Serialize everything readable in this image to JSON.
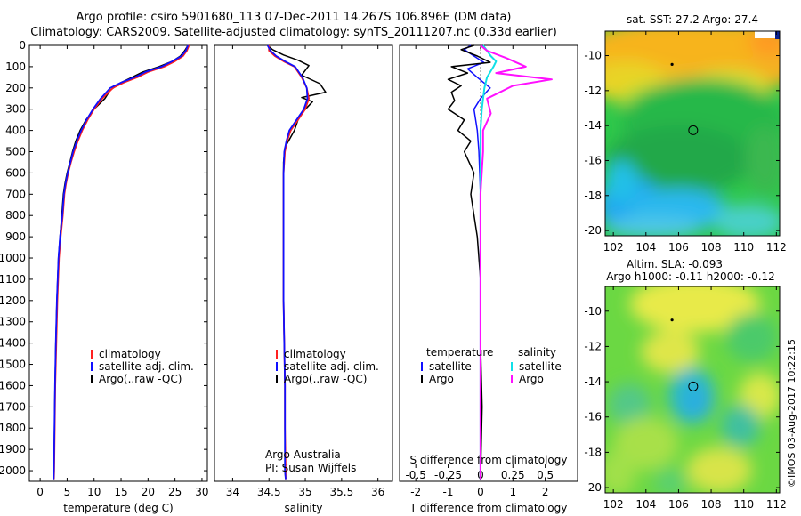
{
  "header": {
    "title_line1": "Argo profile: csiro 5901680_113 07-Dec-2011 14.267S 106.896E (DM data)",
    "title_line2": "Climatology: CARS2009. Satellite-adjusted climatology: synTS_20111207.nc (0.33d earlier)"
  },
  "colors": {
    "climatology": "#ff2020",
    "satellite": "#1010ff",
    "argo": "#000000",
    "salinity_satellite": "#10e0e8",
    "salinity_argo": "#ff10ff"
  },
  "chart_data": [
    {
      "type": "line",
      "xlabel": "temperature (deg C)",
      "ylabel": "",
      "xlim": [
        -2,
        31
      ],
      "ylim": [
        2050,
        0
      ],
      "y_inverted": true,
      "xticks": [
        0,
        5,
        10,
        15,
        20,
        25,
        30
      ],
      "yticks": [
        0,
        100,
        200,
        300,
        400,
        500,
        600,
        700,
        800,
        900,
        1000,
        1100,
        1200,
        1300,
        1400,
        1500,
        1600,
        1700,
        1800,
        1900,
        2000
      ],
      "legend": {
        "placement": "lower-center",
        "entries": [
          "climatology",
          "satellite-adj. clim.",
          "Argo(..raw -QC)"
        ]
      },
      "series": [
        {
          "name": "climatology",
          "color": "climatology",
          "x": [
            27.6,
            27.2,
            26.5,
            25,
            23,
            20,
            18,
            15.5,
            13.5,
            11.5,
            10,
            8.8,
            7.8,
            7,
            6.3,
            5.7,
            5.2,
            4.8,
            4.5,
            4.2,
            3.8,
            3.5,
            3.2,
            3,
            2.8,
            2.7,
            2.6,
            2.55
          ],
          "y": [
            0,
            25,
            50,
            75,
            100,
            125,
            150,
            175,
            200,
            250,
            300,
            350,
            400,
            450,
            500,
            550,
            600,
            650,
            700,
            800,
            900,
            1000,
            1200,
            1400,
            1600,
            1800,
            2000,
            2040
          ]
        },
        {
          "name": "satellite-adj. clim.",
          "color": "satellite",
          "x": [
            27.4,
            27,
            26.2,
            24.5,
            22.5,
            19.5,
            17.5,
            15,
            13,
            11.2,
            9.8,
            8.6,
            7.6,
            6.8,
            6.1,
            5.6,
            5.1,
            4.7,
            4.4,
            4.1,
            3.7,
            3.4,
            3.1,
            2.9,
            2.75,
            2.65,
            2.55,
            2.5
          ],
          "y": [
            0,
            25,
            50,
            75,
            100,
            125,
            150,
            175,
            200,
            250,
            300,
            350,
            400,
            450,
            500,
            550,
            600,
            650,
            700,
            800,
            900,
            1000,
            1200,
            1400,
            1600,
            1800,
            2000,
            2040
          ]
        },
        {
          "name": "Argo(..raw -QC)",
          "color": "argo",
          "x": [
            27.4,
            26.8,
            26,
            24.5,
            22,
            19,
            17,
            15,
            13,
            12,
            10,
            8.5,
            7.4,
            6.6,
            6,
            5.5,
            5,
            4.6,
            4.3,
            4,
            3.7,
            3.4,
            3.1,
            2.9,
            2.75,
            2.65,
            2.55,
            2.5
          ],
          "y": [
            0,
            25,
            50,
            75,
            100,
            125,
            150,
            175,
            210,
            250,
            300,
            350,
            400,
            450,
            500,
            550,
            600,
            650,
            700,
            800,
            900,
            1000,
            1200,
            1400,
            1600,
            1800,
            2000,
            2040
          ]
        }
      ]
    },
    {
      "type": "line",
      "xlabel": "salinity",
      "ylabel": "",
      "xlim": [
        33.75,
        36.2
      ],
      "ylim": [
        2050,
        0
      ],
      "y_inverted": true,
      "xticks": [
        34,
        34.5,
        35,
        35.5,
        36
      ],
      "legend": {
        "placement": "lower-center",
        "entries": [
          "climatology",
          "satellite-adj. clim.",
          "Argo(..raw -QC)"
        ]
      },
      "annotation": {
        "line1": "Argo Australia",
        "line2": "PI: Susan Wijffels"
      },
      "series": [
        {
          "name": "climatology",
          "color": "climatology",
          "x": [
            34.5,
            34.5,
            34.58,
            34.7,
            34.85,
            34.95,
            35.02,
            35.05,
            35.0,
            34.9,
            34.8,
            34.75,
            34.72,
            34.7,
            34.7,
            34.7,
            34.7,
            34.71,
            34.72,
            34.72,
            34.73,
            34.73
          ],
          "y": [
            0,
            25,
            50,
            75,
            100,
            150,
            200,
            250,
            300,
            350,
            400,
            450,
            500,
            600,
            800,
            1000,
            1200,
            1400,
            1600,
            1800,
            2000,
            2040
          ]
        },
        {
          "name": "satellite-adj. clim.",
          "color": "satellite",
          "x": [
            34.48,
            34.52,
            34.6,
            34.72,
            34.86,
            34.96,
            35.02,
            35.03,
            34.98,
            34.88,
            34.78,
            34.74,
            34.71,
            34.7,
            34.7,
            34.7,
            34.7,
            34.71,
            34.72,
            34.72,
            34.72,
            34.73
          ],
          "y": [
            0,
            25,
            50,
            75,
            100,
            150,
            200,
            250,
            300,
            350,
            400,
            450,
            500,
            600,
            800,
            1000,
            1200,
            1400,
            1600,
            1800,
            2000,
            2040
          ]
        },
        {
          "name": "Argo(..raw -QC)",
          "color": "argo",
          "x": [
            34.48,
            34.55,
            34.7,
            34.9,
            35.05,
            34.95,
            35.2,
            35.28,
            34.95,
            35.1,
            34.92,
            34.85,
            34.72,
            34.7,
            34.7,
            34.7,
            34.7,
            34.71,
            34.72,
            34.72,
            34.72,
            34.73
          ],
          "y": [
            0,
            20,
            45,
            70,
            95,
            140,
            180,
            220,
            245,
            265,
            330,
            400,
            480,
            550,
            800,
            1000,
            1200,
            1400,
            1600,
            1800,
            2000,
            2040
          ]
        }
      ]
    },
    {
      "type": "line",
      "xlabel": "T difference from climatology",
      "x2label": "S difference from climatology",
      "xlim": [
        -2.5,
        3
      ],
      "ylim": [
        2050,
        0
      ],
      "y_inverted": true,
      "xticks": [
        -2,
        -1,
        0,
        1,
        2
      ],
      "x2lim": [
        -0.625,
        0.75
      ],
      "x2ticks": [
        -0.5,
        -0.25,
        0,
        0.25,
        0.5
      ],
      "x2ticklabels": [
        "-0.5",
        "-0.25",
        "0",
        "0.25",
        "0.5"
      ],
      "legend": {
        "placement": "lower-center",
        "left_header": "temperature",
        "right_header": "salinity",
        "entries": [
          "satellite",
          "Argo",
          "satellite",
          "Argo"
        ]
      },
      "series": [
        {
          "name": "satellite",
          "group": "temperature",
          "color": "satellite",
          "axis": "T",
          "x": [
            -0.3,
            -0.5,
            -0.2,
            0.1,
            -0.4,
            -0.1,
            0.3,
            0.0,
            -0.2,
            -0.1,
            -0.05,
            0.0,
            0.0,
            0.0,
            0.0,
            0.0,
            0.0,
            0.0
          ],
          "y": [
            0,
            20,
            50,
            80,
            110,
            150,
            200,
            250,
            300,
            400,
            500,
            700,
            900,
            1100,
            1400,
            1700,
            2000,
            2040
          ]
        },
        {
          "name": "Argo",
          "group": "temperature",
          "color": "argo",
          "axis": "T",
          "x": [
            -0.2,
            -0.6,
            -0.1,
            0.3,
            -0.9,
            -0.4,
            -1.0,
            -0.6,
            -0.9,
            -0.8,
            -1.0,
            -0.5,
            -0.7,
            -0.3,
            -0.5,
            -0.2,
            -0.3,
            -0.1,
            0.0,
            0.0,
            0.05,
            0.0
          ],
          "y": [
            0,
            20,
            50,
            80,
            100,
            130,
            160,
            190,
            220,
            260,
            300,
            350,
            400,
            450,
            500,
            600,
            700,
            900,
            1100,
            1400,
            1700,
            2040
          ]
        },
        {
          "name": "satellite",
          "group": "salinity",
          "color": "salinity_satellite",
          "axis": "S",
          "x": [
            0.02,
            0.05,
            0.08,
            0.12,
            0.1,
            0.05,
            0.03,
            0.01,
            0.0,
            0.0,
            0.0,
            0.0,
            0.0,
            0.0,
            0.0,
            0.0
          ],
          "y": [
            0,
            25,
            50,
            75,
            100,
            150,
            200,
            300,
            400,
            500,
            700,
            900,
            1200,
            1500,
            1800,
            2040
          ]
        },
        {
          "name": "Argo",
          "group": "salinity",
          "color": "salinity_argo",
          "axis": "S",
          "x": [
            0.0,
            0.05,
            0.2,
            0.35,
            0.12,
            0.55,
            0.25,
            0.05,
            0.08,
            0.02,
            0.02,
            0.0,
            0.0,
            0.0,
            0.0,
            0.0
          ],
          "y": [
            0,
            25,
            60,
            100,
            130,
            160,
            190,
            250,
            320,
            400,
            500,
            700,
            900,
            1200,
            1600,
            2040
          ]
        }
      ]
    },
    {
      "type": "heatmap",
      "title": "sat. SST: 27.2 Argo: 27.4",
      "xlim": [
        101.5,
        112.2
      ],
      "ylim": [
        -20.3,
        -8.6
      ],
      "xticks": [
        102,
        104,
        106,
        108,
        110,
        112
      ],
      "yticks": [
        -10,
        -12,
        -14,
        -16,
        -18,
        -20
      ],
      "argo_location": {
        "lon": 106.896,
        "lat": -14.267
      },
      "previous_location": {
        "lon": 105.6,
        "lat": -10.5
      }
    },
    {
      "type": "heatmap",
      "title_line1": "Altim. SLA: -0.093",
      "title_line2": "Argo h1000: -0.11 h2000: -0.12",
      "xlim": [
        101.5,
        112.2
      ],
      "ylim": [
        -20.3,
        -8.6
      ],
      "xticks": [
        102,
        104,
        106,
        108,
        110,
        112
      ],
      "yticks": [
        -10,
        -12,
        -14,
        -16,
        -18,
        -20
      ],
      "argo_location": {
        "lon": 106.896,
        "lat": -14.267
      },
      "previous_location": {
        "lon": 105.6,
        "lat": -10.5
      }
    }
  ],
  "footer": {
    "credit": "©IMOS 03-Aug-2017 10:22:15"
  }
}
